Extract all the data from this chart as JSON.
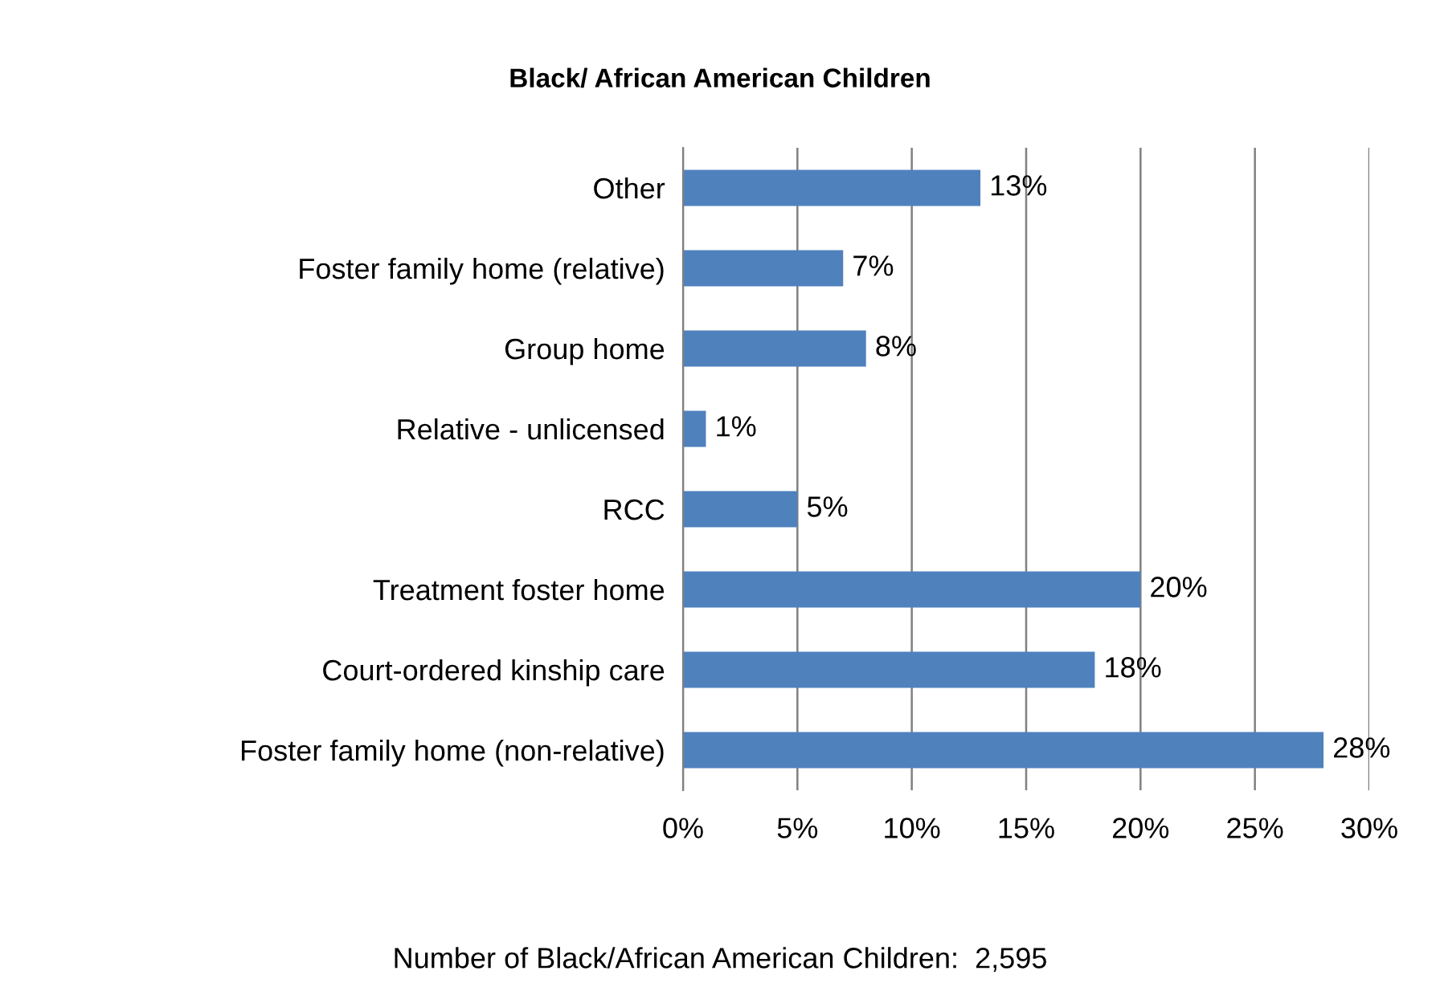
{
  "chart_data": {
    "type": "bar",
    "orientation": "horizontal",
    "title": "Black/ African American Children",
    "categories": [
      "Other",
      "Foster family home (relative)",
      "Group home",
      "Relative - unlicensed",
      "RCC",
      "Treatment foster home",
      "Court-ordered kinship care",
      "Foster family home (non-relative)"
    ],
    "values": [
      13,
      7,
      8,
      1,
      5,
      20,
      18,
      28
    ],
    "value_labels": [
      "13%",
      "7%",
      "8%",
      "1%",
      "5%",
      "20%",
      "18%",
      "28%"
    ],
    "color": "#4f81bd",
    "xlim": [
      0,
      30
    ],
    "xticks": [
      {
        "value": 0,
        "label": "0%"
      },
      {
        "value": 5,
        "label": "5%"
      },
      {
        "value": 10,
        "label": "10%"
      },
      {
        "value": 15,
        "label": "15%"
      },
      {
        "value": 20,
        "label": "20%"
      },
      {
        "value": 25,
        "label": "25%"
      },
      {
        "value": 30,
        "label": "30%"
      }
    ],
    "grid": "x",
    "annotations": [
      "Number of Black/African American Children:  2,595"
    ]
  }
}
